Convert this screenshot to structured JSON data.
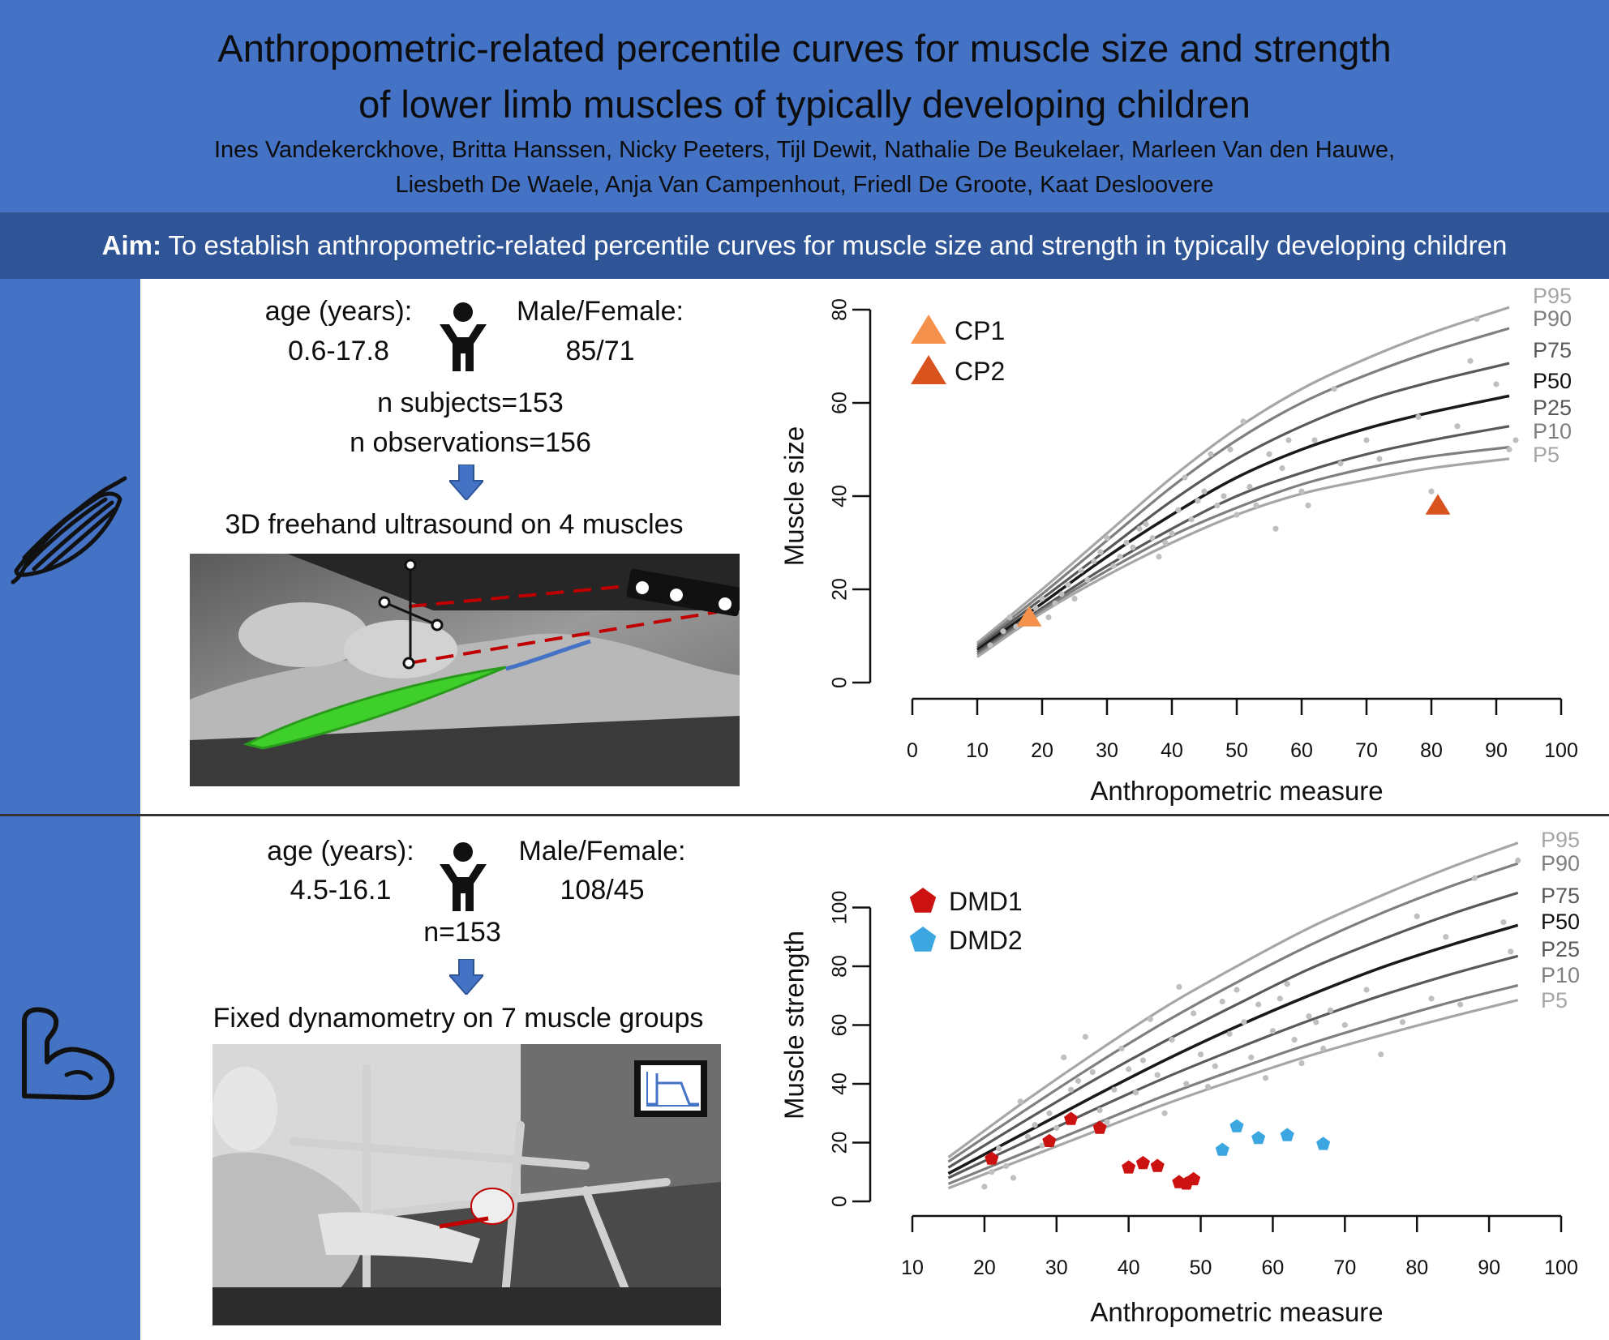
{
  "header": {
    "title_line1": "Anthropometric-related percentile curves for muscle size and strength",
    "title_line2": "of lower limb muscles of typically developing children",
    "authors_line1": "Ines Vandekerckhove, Britta Hanssen, Nicky Peeters, Tijl Dewit, Nathalie De Beukelaer, Marleen Van den Hauwe,",
    "authors_line2": "Liesbeth De Waele, Anja Van Campenhout, Friedl De Groote, Kaat Desloovere"
  },
  "aim": {
    "label": "Aim:",
    "text": " To establish anthropometric-related percentile curves for muscle size and strength in typically developing children"
  },
  "colors": {
    "header_blue": "#4472c4",
    "aim_blue": "#2f5597",
    "cp1": "#f4914a",
    "cp2": "#d9531e",
    "dmd1": "#cc1111",
    "dmd2": "#3ba6e0",
    "muscle_green": "#3fcf2a"
  },
  "icons": {
    "panel1_side": "muscle-icon",
    "panel2_side": "flexed-arm-icon",
    "person": "child-person-icon",
    "arrow": "arrow-down-icon"
  },
  "panel_size": {
    "age_label": "age (years):",
    "age_value": "0.6-17.8",
    "sex_label": "Male/Female:",
    "sex_value": "85/71",
    "n_subjects": "n subjects=153",
    "n_observations": "n observations=156",
    "method": "3D freehand ultrasound on 4 muscles"
  },
  "panel_strength": {
    "age_label": "age (years):",
    "age_value": "4.5-16.1",
    "sex_label": "Male/Female:",
    "sex_value": "108/45",
    "n": "n=153",
    "method": "Fixed dynamometry on 7 muscle groups"
  },
  "chart_data": [
    {
      "type": "line",
      "xlabel": "Anthropometric measure",
      "ylabel": "Muscle size",
      "xlim": [
        0,
        100
      ],
      "ylim": [
        0,
        80
      ],
      "xticks": [
        0,
        10,
        20,
        30,
        40,
        50,
        60,
        70,
        80,
        90,
        100
      ],
      "yticks": [
        0,
        20,
        40,
        60,
        80
      ],
      "grid": false,
      "legend_position": "top-left",
      "curve_x": [
        10,
        20,
        30,
        40,
        50,
        60,
        70,
        80,
        92
      ],
      "series": [
        {
          "name": "P95",
          "color": "#a6a6a6",
          "values": [
            8.5,
            20,
            32,
            44,
            54.5,
            63,
            69.5,
            75,
            80.5
          ]
        },
        {
          "name": "P90",
          "color": "#7f7f7f",
          "values": [
            8,
            19,
            30.5,
            42,
            52,
            60,
            66,
            71,
            76
          ]
        },
        {
          "name": "P75",
          "color": "#595959",
          "values": [
            7.5,
            18,
            28.5,
            39,
            48,
            55,
            60.5,
            64.5,
            68.5
          ]
        },
        {
          "name": "P50",
          "color": "#1a1a1a",
          "values": [
            7,
            17,
            27,
            36,
            44,
            50,
            54.5,
            58,
            61.5
          ]
        },
        {
          "name": "P25",
          "color": "#595959",
          "values": [
            6.5,
            16,
            25,
            33,
            40,
            45,
            49,
            52,
            55
          ]
        },
        {
          "name": "P10",
          "color": "#7f7f7f",
          "values": [
            6,
            15.5,
            24,
            31.5,
            37.5,
            42.5,
            46,
            48.5,
            50.5
          ]
        },
        {
          "name": "P5",
          "color": "#a6a6a6",
          "values": [
            5.5,
            15,
            23,
            30,
            36,
            40.5,
            43.5,
            46,
            48
          ]
        }
      ],
      "scatter": [
        [
          12,
          8
        ],
        [
          14,
          11
        ],
        [
          15,
          14
        ],
        [
          16,
          12
        ],
        [
          18,
          13
        ],
        [
          19,
          16
        ],
        [
          20,
          18
        ],
        [
          21,
          14
        ],
        [
          22,
          17
        ],
        [
          23,
          19
        ],
        [
          24,
          21
        ],
        [
          25,
          18
        ],
        [
          26,
          24
        ],
        [
          27,
          22
        ],
        [
          28,
          26
        ],
        [
          29,
          28
        ],
        [
          30,
          31
        ],
        [
          31,
          25
        ],
        [
          32,
          27
        ],
        [
          33,
          30
        ],
        [
          34,
          29
        ],
        [
          35,
          33
        ],
        [
          36,
          34
        ],
        [
          37,
          31
        ],
        [
          38,
          27
        ],
        [
          39,
          30
        ],
        [
          40,
          32
        ],
        [
          41,
          37
        ],
        [
          42,
          44
        ],
        [
          43,
          35
        ],
        [
          44,
          39
        ],
        [
          45,
          41
        ],
        [
          46,
          49
        ],
        [
          47,
          38
        ],
        [
          48,
          40
        ],
        [
          49,
          50
        ],
        [
          50,
          36
        ],
        [
          51,
          56
        ],
        [
          52,
          42
        ],
        [
          53,
          38
        ],
        [
          55,
          49
        ],
        [
          56,
          33
        ],
        [
          57,
          46
        ],
        [
          58,
          52
        ],
        [
          60,
          41
        ],
        [
          61,
          38
        ],
        [
          62,
          52
        ],
        [
          65,
          63
        ],
        [
          66,
          47
        ],
        [
          70,
          52
        ],
        [
          72,
          48
        ],
        [
          78,
          57
        ],
        [
          80,
          41
        ],
        [
          84,
          55
        ],
        [
          86,
          69
        ],
        [
          87,
          78
        ],
        [
          90,
          64
        ],
        [
          92,
          50
        ],
        [
          93,
          52
        ]
      ],
      "points": [
        {
          "name": "CP1",
          "x": 18,
          "y": 14,
          "color": "#f4914a"
        },
        {
          "name": "CP2",
          "x": 81,
          "y": 38,
          "color": "#d9531e"
        }
      ]
    },
    {
      "type": "line",
      "xlabel": "Anthropometric measure",
      "ylabel": "Muscle strength",
      "xlim": [
        10,
        100
      ],
      "ylim": [
        0,
        120
      ],
      "xticks": [
        10,
        20,
        30,
        40,
        50,
        60,
        70,
        80,
        90,
        100
      ],
      "yticks": [
        0,
        20,
        40,
        60,
        80,
        100
      ],
      "grid": false,
      "legend_position": "top-left",
      "curve_x": [
        15,
        25,
        35,
        45,
        55,
        65,
        75,
        85,
        94
      ],
      "series": [
        {
          "name": "P95",
          "color": "#a6a6a6",
          "values": [
            15,
            33,
            50,
            66,
            80,
            93,
            104,
            114,
            122
          ]
        },
        {
          "name": "P90",
          "color": "#7f7f7f",
          "values": [
            13.5,
            30,
            46,
            61,
            74.5,
            87,
            98,
            107.5,
            115
          ]
        },
        {
          "name": "P75",
          "color": "#595959",
          "values": [
            11.5,
            26.5,
            41,
            54.5,
            67,
            79,
            89,
            98,
            105
          ]
        },
        {
          "name": "P50",
          "color": "#1a1a1a",
          "values": [
            9.5,
            22.5,
            35.5,
            48,
            59.5,
            70,
            79.5,
            87.5,
            94
          ]
        },
        {
          "name": "P25",
          "color": "#595959",
          "values": [
            8,
            19.5,
            31,
            42,
            52,
            61.5,
            70,
            77.5,
            83.5
          ]
        },
        {
          "name": "P10",
          "color": "#7f7f7f",
          "values": [
            6,
            16,
            26,
            36,
            45,
            53.5,
            61,
            68,
            73.5
          ]
        },
        {
          "name": "P5",
          "color": "#a6a6a6",
          "values": [
            4.5,
            14,
            23.5,
            33,
            41.5,
            49.5,
            56.5,
            63,
            68.5
          ]
        }
      ],
      "scatter": [
        [
          20,
          5
        ],
        [
          21,
          10
        ],
        [
          22,
          18
        ],
        [
          23,
          12
        ],
        [
          24,
          8
        ],
        [
          25,
          34
        ],
        [
          26,
          22
        ],
        [
          27,
          26
        ],
        [
          28,
          19
        ],
        [
          29,
          30
        ],
        [
          30,
          25
        ],
        [
          31,
          49
        ],
        [
          32,
          38
        ],
        [
          33,
          41
        ],
        [
          34,
          56
        ],
        [
          35,
          44
        ],
        [
          36,
          31
        ],
        [
          37,
          27
        ],
        [
          38,
          38
        ],
        [
          39,
          52
        ],
        [
          40,
          45
        ],
        [
          41,
          37
        ],
        [
          42,
          48
        ],
        [
          43,
          62
        ],
        [
          44,
          43
        ],
        [
          45,
          30
        ],
        [
          46,
          55
        ],
        [
          47,
          73
        ],
        [
          48,
          40
        ],
        [
          49,
          64
        ],
        [
          50,
          50
        ],
        [
          51,
          39
        ],
        [
          52,
          46
        ],
        [
          53,
          68
        ],
        [
          54,
          57
        ],
        [
          55,
          72
        ],
        [
          56,
          61
        ],
        [
          57,
          49
        ],
        [
          58,
          67
        ],
        [
          59,
          42
        ],
        [
          60,
          58
        ],
        [
          61,
          69
        ],
        [
          62,
          74
        ],
        [
          63,
          55
        ],
        [
          64,
          47
        ],
        [
          65,
          63
        ],
        [
          66,
          61
        ],
        [
          67,
          52
        ],
        [
          68,
          65
        ],
        [
          70,
          60
        ],
        [
          73,
          72
        ],
        [
          75,
          50
        ],
        [
          78,
          61
        ],
        [
          80,
          97
        ],
        [
          82,
          69
        ],
        [
          84,
          90
        ],
        [
          86,
          67
        ],
        [
          88,
          110
        ],
        [
          92,
          95
        ],
        [
          93,
          85
        ],
        [
          94,
          116
        ]
      ],
      "points": [
        {
          "name": "DMD1",
          "x": 21,
          "y": 14.5,
          "color": "#cc1111"
        },
        {
          "name": "DMD1",
          "x": 29,
          "y": 20.5,
          "color": "#cc1111"
        },
        {
          "name": "DMD1",
          "x": 32,
          "y": 28,
          "color": "#cc1111"
        },
        {
          "name": "DMD1",
          "x": 36,
          "y": 25,
          "color": "#cc1111"
        },
        {
          "name": "DMD1",
          "x": 40,
          "y": 11.5,
          "color": "#cc1111"
        },
        {
          "name": "DMD1",
          "x": 42,
          "y": 13,
          "color": "#cc1111"
        },
        {
          "name": "DMD1",
          "x": 44,
          "y": 12,
          "color": "#cc1111"
        },
        {
          "name": "DMD1",
          "x": 47,
          "y": 6.5,
          "color": "#cc1111"
        },
        {
          "name": "DMD1",
          "x": 48,
          "y": 6,
          "color": "#cc1111"
        },
        {
          "name": "DMD1",
          "x": 49,
          "y": 7.5,
          "color": "#cc1111"
        },
        {
          "name": "DMD2",
          "x": 53,
          "y": 17.5,
          "color": "#3ba6e0"
        },
        {
          "name": "DMD2",
          "x": 55,
          "y": 25.5,
          "color": "#3ba6e0"
        },
        {
          "name": "DMD2",
          "x": 58,
          "y": 21.5,
          "color": "#3ba6e0"
        },
        {
          "name": "DMD2",
          "x": 62,
          "y": 22.5,
          "color": "#3ba6e0"
        },
        {
          "name": "DMD2",
          "x": 67,
          "y": 19.5,
          "color": "#3ba6e0"
        }
      ]
    }
  ]
}
